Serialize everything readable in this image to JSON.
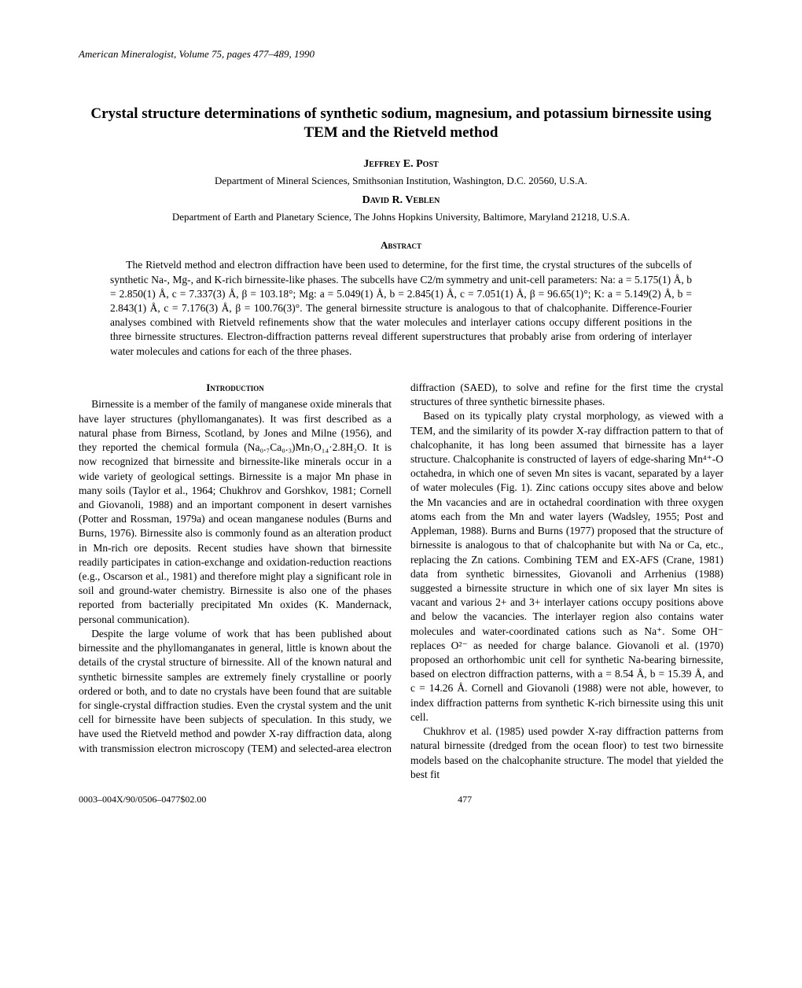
{
  "journal": {
    "citation": "American Mineralogist, Volume 75, pages 477–489, 1990"
  },
  "title": "Crystal structure determinations of synthetic sodium, magnesium, and potassium birnessite using TEM and the Rietveld method",
  "authors": [
    {
      "name": "Jeffrey E. Post",
      "affiliation": "Department of Mineral Sciences, Smithsonian Institution, Washington, D.C. 20560, U.S.A."
    },
    {
      "name": "David R. Veblen",
      "affiliation": "Department of Earth and Planetary Science, The Johns Hopkins University, Baltimore, Maryland 21218, U.S.A."
    }
  ],
  "abstract": {
    "header": "Abstract",
    "body": "The Rietveld method and electron diffraction have been used to determine, for the first time, the crystal structures of the subcells of synthetic Na-, Mg-, and K-rich birnessite-like phases. The subcells have C2/m symmetry and unit-cell parameters: Na: a = 5.175(1) Å, b = 2.850(1) Å, c = 7.337(3) Å, β = 103.18°; Mg: a = 5.049(1) Å, b = 2.845(1) Å, c = 7.051(1) Å, β = 96.65(1)°; K: a = 5.149(2) Å, b = 2.843(1) Å, c = 7.176(3) Å, β = 100.76(3)°. The general birnessite structure is analogous to that of chalcophanite. Difference-Fourier analyses combined with Rietveld refinements show that the water molecules and interlayer cations occupy different positions in the three birnessite structures. Electron-diffraction patterns reveal different superstructures that probably arise from ordering of interlayer water molecules and cations for each of the three phases."
  },
  "sections": {
    "intro_header": "Introduction",
    "intro_p1": "Birnessite is a member of the family of manganese oxide minerals that have layer structures (phyllomanganates). It was first described as a natural phase from Birness, Scotland, by Jones and Milne (1956), and they reported the chemical formula (Na₀.₇Ca₀.₃)Mn₇O₁₄·2.8H₂O. It is now recognized that birnessite and birnessite-like minerals occur in a wide variety of geological settings. Birnessite is a major Mn phase in many soils (Taylor et al., 1964; Chukhrov and Gorshkov, 1981; Cornell and Giovanoli, 1988) and an important component in desert varnishes (Potter and Rossman, 1979a) and ocean manganese nodules (Burns and Burns, 1976). Birnessite also is commonly found as an alteration product in Mn-rich ore deposits. Recent studies have shown that birnessite readily participates in cation-exchange and oxidation-reduction reactions (e.g., Oscarson et al., 1981) and therefore might play a significant role in soil and ground-water chemistry. Birnessite is also one of the phases reported from bacterially precipitated Mn oxides (K. Mandernack, personal communication).",
    "intro_p2": "Despite the large volume of work that has been published about birnessite and the phyllomanganates in general, little is known about the details of the crystal structure of birnessite. All of the known natural and synthetic birnessite samples are extremely finely crystalline or poorly ordered or both, and to date no crystals have been found that are suitable for single-crystal diffraction studies. Even the crystal system and the unit cell for birnessite have been subjects of speculation. In this study, we have used the Rietveld method and powder X-ray diffraction data, along with transmission electron microscopy (TEM) and selected-area electron diffraction (SAED), to solve and refine for the first time the crystal structures of three synthetic birnessite phases.",
    "intro_p3": "Based on its typically platy crystal morphology, as viewed with a TEM, and the similarity of its powder X-ray diffraction pattern to that of chalcophanite, it has long been assumed that birnessite has a layer structure. Chalcophanite is constructed of layers of edge-sharing Mn⁴⁺-O octahedra, in which one of seven Mn sites is vacant, separated by a layer of water molecules (Fig. 1). Zinc cations occupy sites above and below the Mn vacancies and are in octahedral coordination with three oxygen atoms each from the Mn and water layers (Wadsley, 1955; Post and Appleman, 1988). Burns and Burns (1977) proposed that the structure of birnessite is analogous to that of chalcophanite but with Na or Ca, etc., replacing the Zn cations. Combining TEM and EX-AFS (Crane, 1981) data from synthetic birnessites, Giovanoli and Arrhenius (1988) suggested a birnessite structure in which one of six layer Mn sites is vacant and various 2+ and 3+ interlayer cations occupy positions above and below the vacancies. The interlayer region also contains water molecules and water-coordinated cations such as Na⁺. Some OH⁻ replaces O²⁻ as needed for charge balance. Giovanoli et al. (1970) proposed an orthorhombic unit cell for synthetic Na-bearing birnessite, based on electron diffraction patterns, with a = 8.54 Å, b = 15.39 Å, and c = 14.26 Å. Cornell and Giovanoli (1988) were not able, however, to index diffraction patterns from synthetic K-rich birnessite using this unit cell.",
    "intro_p4": "Chukhrov et al. (1985) used powder X-ray diffraction patterns from natural birnessite (dredged from the ocean floor) to test two birnessite models based on the chalcophanite structure. The model that yielded the best fit"
  },
  "footer": {
    "issn": "0003–004X/90/0506–0477$02.00",
    "page": "477"
  }
}
